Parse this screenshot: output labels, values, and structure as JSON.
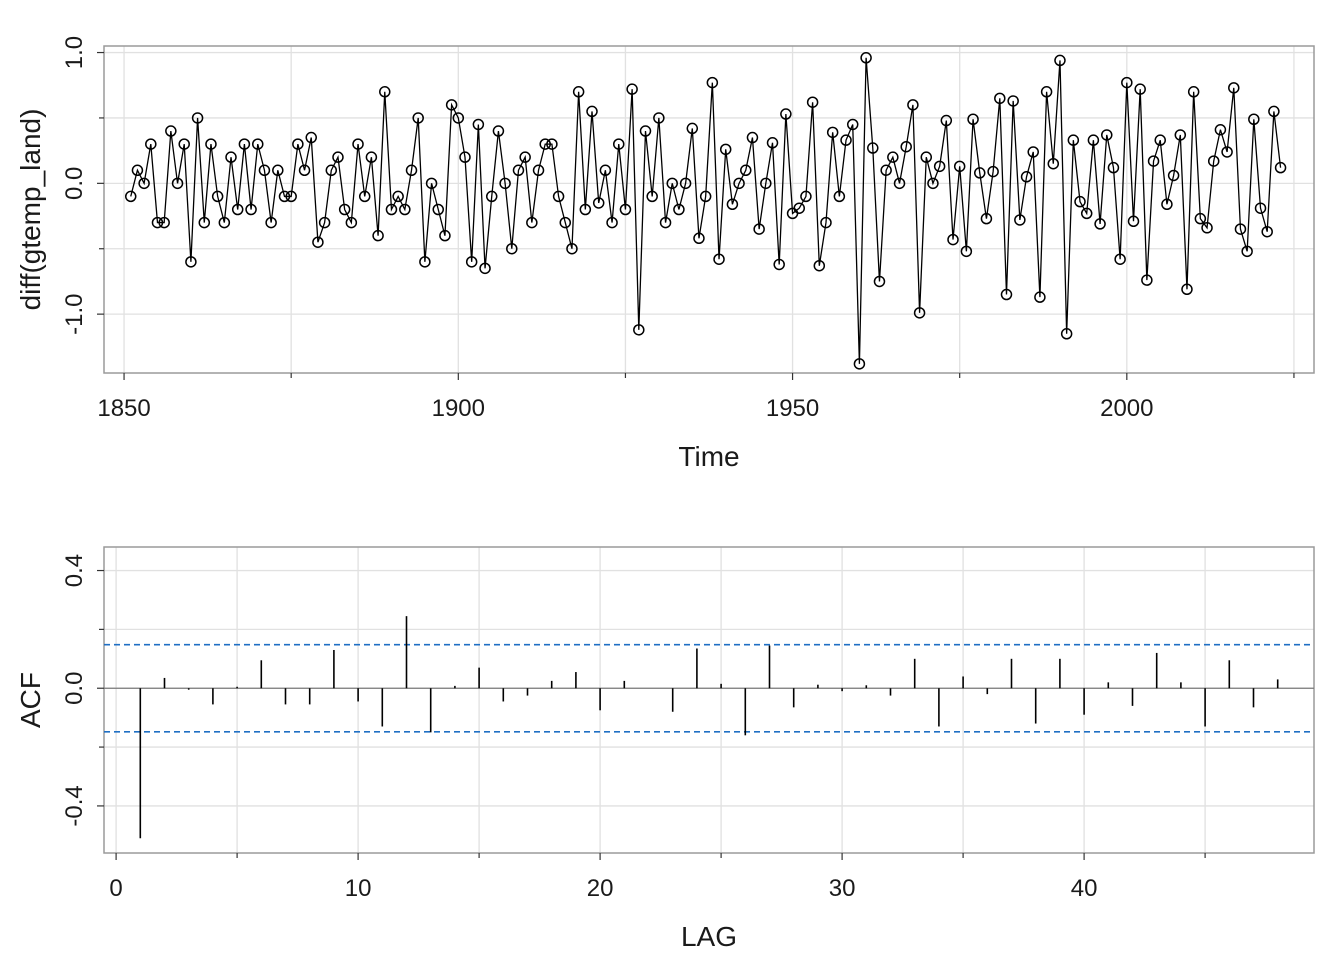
{
  "chart_data": [
    {
      "type": "line",
      "markers": "open-circle",
      "xlabel": "Time",
      "ylabel": "diff(gtemp_land)",
      "xlim": [
        1847,
        2028
      ],
      "ylim": [
        -1.45,
        1.05
      ],
      "x_ticks": [
        1850,
        1900,
        1950,
        2000
      ],
      "x_minor_ticks": [
        1875,
        1925,
        1975,
        2025
      ],
      "y_ticks": [
        -1.0,
        0.0,
        1.0
      ],
      "y_tick_labels": [
        "-1.0",
        "0.0",
        "1.0"
      ],
      "y_minor_ticks": [
        -0.5,
        0.5
      ],
      "grid": true,
      "series": [
        {
          "x_start": 1851,
          "x_step": 1,
          "values": [
            -0.1,
            0.1,
            0.0,
            0.3,
            -0.3,
            -0.3,
            0.4,
            0.0,
            0.3,
            -0.6,
            0.5,
            -0.3,
            0.3,
            -0.1,
            -0.3,
            0.2,
            -0.2,
            0.3,
            -0.2,
            0.3,
            0.1,
            -0.3,
            0.1,
            -0.1,
            -0.1,
            0.3,
            0.1,
            0.35,
            -0.45,
            -0.3,
            0.1,
            0.2,
            -0.2,
            -0.3,
            0.3,
            -0.1,
            0.2,
            -0.4,
            0.7,
            -0.2,
            -0.1,
            -0.2,
            0.1,
            0.5,
            -0.6,
            0.0,
            -0.2,
            -0.4,
            0.6,
            0.5,
            0.2,
            -0.6,
            0.45,
            -0.65,
            -0.1,
            0.4,
            0.0,
            -0.5,
            0.1,
            0.2,
            -0.3,
            0.1,
            0.3,
            0.3,
            -0.1,
            -0.3,
            -0.5,
            0.7,
            -0.2,
            0.55,
            -0.15,
            0.1,
            -0.3,
            0.3,
            -0.2,
            0.72,
            -1.12,
            0.4,
            -0.1,
            0.5,
            -0.3,
            0.0,
            -0.2,
            0.0,
            0.42,
            -0.42,
            -0.1,
            0.77,
            -0.58,
            0.26,
            -0.16,
            0.0,
            0.1,
            0.35,
            -0.35,
            0.0,
            0.31,
            -0.62,
            0.53,
            -0.23,
            -0.19,
            -0.1,
            0.62,
            -0.63,
            -0.3,
            0.39,
            -0.1,
            0.33,
            0.45,
            -1.38,
            0.96,
            0.27,
            -0.75,
            0.1,
            0.2,
            0.0,
            0.28,
            0.6,
            -0.99,
            0.2,
            0.0,
            0.13,
            0.48,
            -0.43,
            0.13,
            -0.52,
            0.49,
            0.08,
            -0.27,
            0.09,
            0.65,
            -0.85,
            0.63,
            -0.28,
            0.05,
            0.24,
            -0.87,
            0.7,
            0.15,
            0.94,
            -1.15,
            0.33,
            -0.14,
            -0.23,
            0.33,
            -0.31,
            0.37,
            0.12,
            -0.58,
            0.77,
            -0.29,
            0.72,
            -0.74,
            0.17,
            0.33,
            -0.16,
            0.06,
            0.37,
            -0.81,
            0.7,
            -0.27,
            -0.34,
            0.17,
            0.41,
            0.24,
            0.73,
            -0.35,
            -0.52,
            0.49,
            -0.19,
            -0.37,
            0.55,
            0.12
          ]
        }
      ]
    },
    {
      "type": "bar",
      "style": "acf-spikes",
      "xlabel": "LAG",
      "ylabel": "ACF",
      "xlim": [
        -0.5,
        49.5
      ],
      "ylim": [
        -0.56,
        0.48
      ],
      "x_ticks": [
        0,
        10,
        20,
        30,
        40
      ],
      "x_minor_ticks": [
        5,
        15,
        25,
        35,
        45
      ],
      "y_ticks": [
        -0.4,
        0.0,
        0.4
      ],
      "y_tick_labels": [
        "-0.4",
        "0.0",
        "0.4"
      ],
      "y_minor_ticks": [
        -0.2,
        0.2
      ],
      "grid": true,
      "zero_line": true,
      "confidence_bounds": {
        "value": 0.148,
        "line_style": "dashed",
        "color": "#1f6fc4"
      },
      "lags": [
        1,
        2,
        3,
        4,
        5,
        6,
        7,
        8,
        9,
        10,
        11,
        12,
        13,
        14,
        15,
        16,
        17,
        18,
        19,
        20,
        21,
        22,
        23,
        24,
        25,
        26,
        27,
        28,
        29,
        30,
        31,
        32,
        33,
        34,
        35,
        36,
        37,
        38,
        39,
        40,
        41,
        42,
        43,
        44,
        45,
        46,
        47,
        48
      ],
      "values": [
        -0.51,
        0.035,
        -0.005,
        -0.055,
        0.005,
        0.095,
        -0.055,
        -0.055,
        0.13,
        -0.045,
        -0.13,
        0.245,
        -0.15,
        0.008,
        0.07,
        -0.045,
        -0.025,
        0.025,
        0.055,
        -0.075,
        0.025,
        0.0,
        -0.08,
        0.135,
        0.015,
        -0.16,
        0.145,
        -0.065,
        0.012,
        -0.01,
        0.01,
        -0.025,
        0.1,
        -0.13,
        0.04,
        -0.02,
        0.1,
        -0.12,
        0.1,
        -0.09,
        0.02,
        -0.06,
        0.12,
        0.02,
        -0.13,
        0.095,
        -0.065,
        0.03
      ]
    }
  ],
  "colors": {
    "data": "#000000",
    "grid": "#e1e1e1",
    "frame": "#9a9a9a",
    "zero_line": "#7a7a7a",
    "confidence": "#1f6fc4"
  }
}
